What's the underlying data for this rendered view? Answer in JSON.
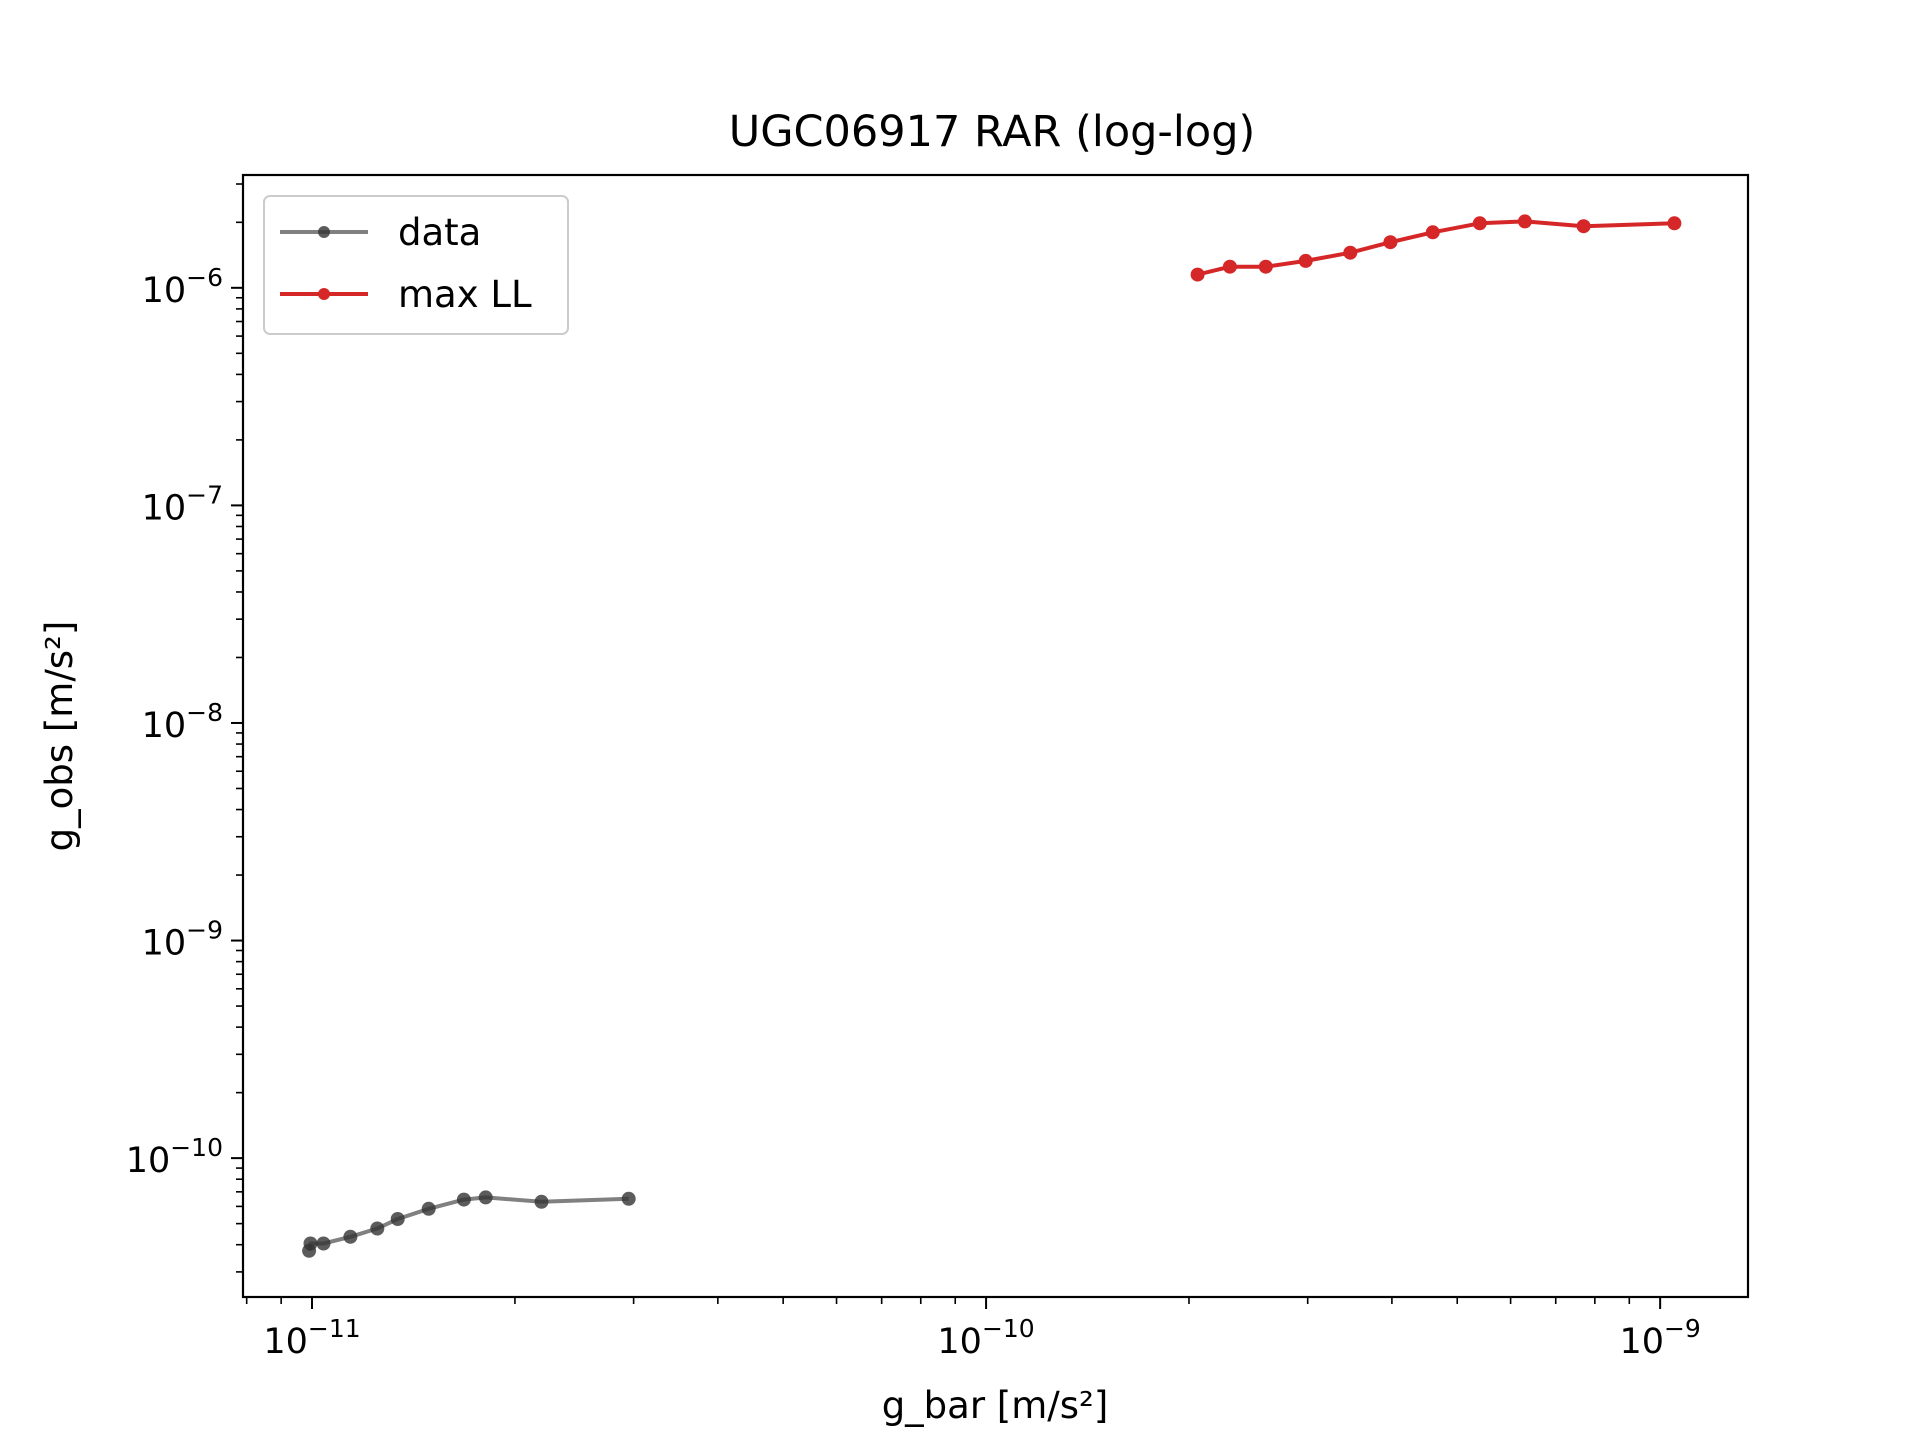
{
  "chart_data": {
    "type": "line",
    "title": "UGC06917 RAR (log-log)",
    "xlabel": "g_bar [m/s²]",
    "ylabel": "g_obs [m/s²]",
    "xscale": "log",
    "yscale": "log",
    "xlim": [
      7.9e-12,
      1.35e-09
    ],
    "ylim": [
      2.3e-11,
      3.3e-06
    ],
    "grid": false,
    "legend": {
      "placement": "upper-left",
      "entries": [
        "data",
        "max LL"
      ]
    },
    "x_ticks": [
      {
        "value": 1e-11,
        "base": "10",
        "exp": "−11"
      },
      {
        "value": 1e-10,
        "base": "10",
        "exp": "−10"
      },
      {
        "value": 1e-09,
        "base": "10",
        "exp": "−9"
      }
    ],
    "y_ticks": [
      {
        "value": 1e-10,
        "base": "10",
        "exp": "−10"
      },
      {
        "value": 1e-09,
        "base": "10",
        "exp": "−9"
      },
      {
        "value": 1e-08,
        "base": "10",
        "exp": "−8"
      },
      {
        "value": 1e-07,
        "base": "10",
        "exp": "−7"
      },
      {
        "value": 1e-06,
        "base": "10",
        "exp": "−6"
      }
    ],
    "series": [
      {
        "name": "data",
        "color": "#555555",
        "x": [
          9.9e-12,
          9.95e-12,
          1.04e-11,
          1.14e-11,
          1.25e-11,
          1.34e-11,
          1.49e-11,
          1.68e-11,
          1.81e-11,
          2.19e-11,
          2.95e-11
        ],
        "y": [
          3.75e-11,
          4.05e-11,
          4.05e-11,
          4.35e-11,
          4.75e-11,
          5.25e-11,
          5.85e-11,
          6.45e-11,
          6.6e-11,
          6.3e-11,
          6.5e-11
        ]
      },
      {
        "name": "max LL",
        "color": "#d62728",
        "x": [
          2.06e-10,
          2.3e-10,
          2.6e-10,
          2.98e-10,
          3.47e-10,
          3.98e-10,
          4.6e-10,
          5.4e-10,
          6.3e-10,
          7.7e-10,
          1.05e-09
        ],
        "y": [
          1.15e-06,
          1.25e-06,
          1.25e-06,
          1.33e-06,
          1.45e-06,
          1.62e-06,
          1.8e-06,
          1.98e-06,
          2.02e-06,
          1.92e-06,
          1.98e-06
        ]
      }
    ]
  }
}
